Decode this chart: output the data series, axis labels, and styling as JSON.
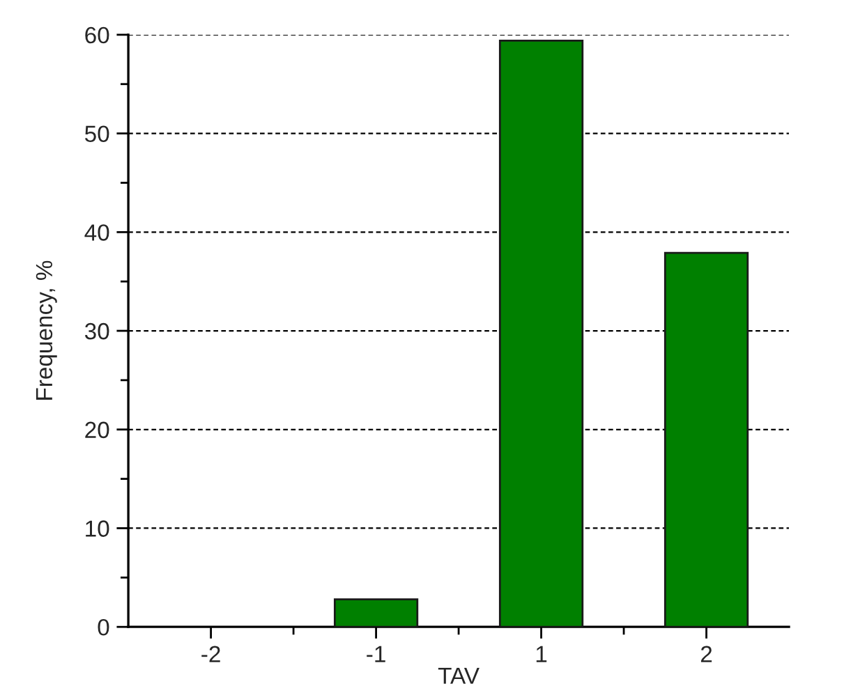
{
  "chart_data": {
    "type": "bar",
    "xlabel": "TAV",
    "ylabel": "Frequency, %",
    "categories": [
      "-2",
      "-1",
      "1",
      "2"
    ],
    "series": [
      {
        "color": "#008000",
        "values": [
          0,
          2.8,
          59.4,
          37.9
        ]
      }
    ],
    "ylim": [
      0,
      60
    ],
    "yticks": [
      0,
      10,
      20,
      30,
      40,
      50,
      60
    ],
    "grid": "y"
  }
}
